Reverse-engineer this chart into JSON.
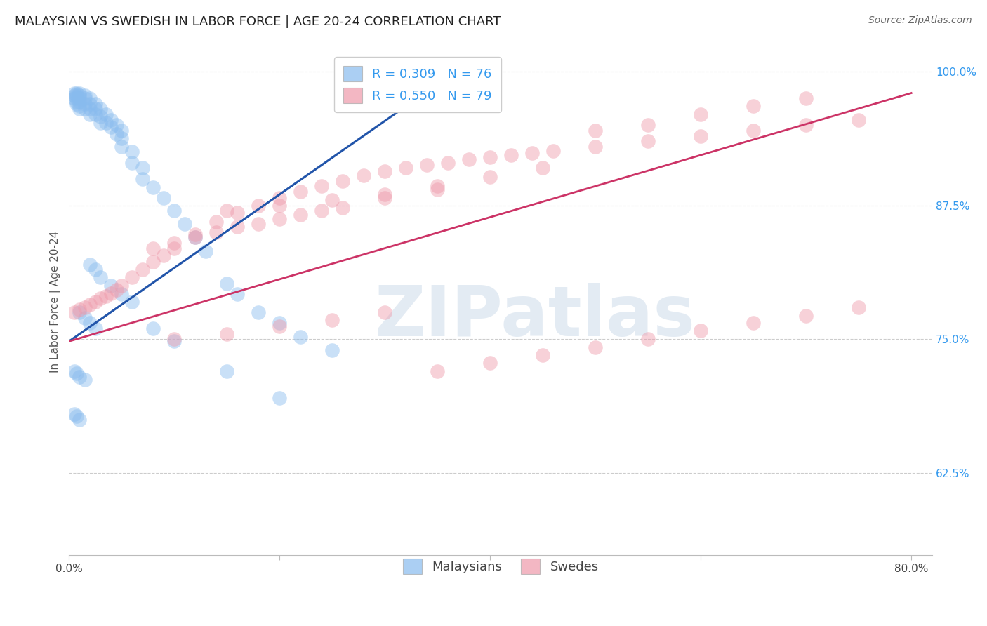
{
  "title": "MALAYSIAN VS SWEDISH IN LABOR FORCE | AGE 20-24 CORRELATION CHART",
  "source": "Source: ZipAtlas.com",
  "ylabel": "In Labor Force | Age 20-24",
  "xlim": [
    0.0,
    0.82
  ],
  "ylim": [
    0.548,
    1.022
  ],
  "ytick_positions": [
    0.625,
    0.75,
    0.875,
    1.0
  ],
  "ytick_labels": [
    "62.5%",
    "75.0%",
    "87.5%",
    "100.0%"
  ],
  "xtick_positions": [
    0.0,
    0.2,
    0.4,
    0.6,
    0.8
  ],
  "xtick_labels": [
    "0.0%",
    "",
    "",
    "",
    "80.0%"
  ],
  "watermark_text": "ZIPatlas",
  "blue_R": 0.309,
  "blue_N": 76,
  "pink_R": 0.55,
  "pink_N": 79,
  "blue_fill": "#88BBEE",
  "pink_fill": "#EE99AA",
  "blue_line": "#2255AA",
  "pink_line": "#CC3366",
  "grid_color": "#CCCCCC",
  "bg_color": "#FFFFFF",
  "blue_x": [
    0.005,
    0.005,
    0.005,
    0.007,
    0.007,
    0.007,
    0.007,
    0.007,
    0.01,
    0.01,
    0.01,
    0.01,
    0.01,
    0.01,
    0.015,
    0.015,
    0.015,
    0.015,
    0.02,
    0.02,
    0.02,
    0.02,
    0.025,
    0.025,
    0.025,
    0.03,
    0.03,
    0.03,
    0.035,
    0.035,
    0.04,
    0.04,
    0.045,
    0.045,
    0.05,
    0.05,
    0.05,
    0.06,
    0.06,
    0.07,
    0.07,
    0.08,
    0.09,
    0.1,
    0.11,
    0.12,
    0.13,
    0.15,
    0.16,
    0.18,
    0.2,
    0.22,
    0.25,
    0.01,
    0.015,
    0.02,
    0.025,
    0.005,
    0.007,
    0.01,
    0.015,
    0.005,
    0.007,
    0.01,
    0.02,
    0.025,
    0.03,
    0.04,
    0.05,
    0.06,
    0.08,
    0.1,
    0.15,
    0.2
  ],
  "blue_y": [
    0.98,
    0.978,
    0.975,
    0.98,
    0.978,
    0.975,
    0.972,
    0.97,
    0.98,
    0.978,
    0.975,
    0.972,
    0.968,
    0.965,
    0.978,
    0.975,
    0.97,
    0.965,
    0.975,
    0.97,
    0.965,
    0.96,
    0.97,
    0.965,
    0.96,
    0.965,
    0.958,
    0.952,
    0.96,
    0.952,
    0.955,
    0.948,
    0.95,
    0.942,
    0.945,
    0.938,
    0.93,
    0.925,
    0.915,
    0.91,
    0.9,
    0.892,
    0.882,
    0.87,
    0.858,
    0.845,
    0.832,
    0.802,
    0.792,
    0.775,
    0.765,
    0.752,
    0.74,
    0.775,
    0.77,
    0.765,
    0.76,
    0.72,
    0.718,
    0.715,
    0.712,
    0.68,
    0.678,
    0.675,
    0.82,
    0.815,
    0.808,
    0.8,
    0.792,
    0.785,
    0.76,
    0.748,
    0.72,
    0.695
  ],
  "pink_x": [
    0.005,
    0.01,
    0.015,
    0.02,
    0.025,
    0.03,
    0.035,
    0.04,
    0.045,
    0.05,
    0.06,
    0.07,
    0.08,
    0.09,
    0.1,
    0.12,
    0.14,
    0.16,
    0.18,
    0.2,
    0.22,
    0.24,
    0.26,
    0.28,
    0.3,
    0.32,
    0.34,
    0.36,
    0.38,
    0.4,
    0.42,
    0.44,
    0.46,
    0.5,
    0.55,
    0.6,
    0.65,
    0.7,
    0.75,
    0.08,
    0.1,
    0.12,
    0.14,
    0.16,
    0.18,
    0.2,
    0.22,
    0.24,
    0.26,
    0.3,
    0.35,
    0.4,
    0.45,
    0.15,
    0.2,
    0.25,
    0.3,
    0.35,
    0.5,
    0.55,
    0.6,
    0.65,
    0.7,
    0.1,
    0.15,
    0.2,
    0.25,
    0.3,
    0.35,
    0.4,
    0.45,
    0.5,
    0.55,
    0.6,
    0.65,
    0.7,
    0.75
  ],
  "pink_y": [
    0.775,
    0.778,
    0.78,
    0.782,
    0.785,
    0.788,
    0.79,
    0.793,
    0.796,
    0.8,
    0.808,
    0.815,
    0.822,
    0.828,
    0.835,
    0.848,
    0.86,
    0.868,
    0.875,
    0.882,
    0.888,
    0.893,
    0.898,
    0.903,
    0.907,
    0.91,
    0.913,
    0.915,
    0.918,
    0.92,
    0.922,
    0.924,
    0.926,
    0.93,
    0.935,
    0.94,
    0.945,
    0.95,
    0.955,
    0.835,
    0.84,
    0.845,
    0.85,
    0.855,
    0.858,
    0.862,
    0.866,
    0.87,
    0.873,
    0.882,
    0.893,
    0.902,
    0.91,
    0.87,
    0.875,
    0.88,
    0.885,
    0.89,
    0.945,
    0.95,
    0.96,
    0.968,
    0.975,
    0.75,
    0.755,
    0.762,
    0.768,
    0.775,
    0.72,
    0.728,
    0.735,
    0.742,
    0.75,
    0.758,
    0.765,
    0.772,
    0.78
  ],
  "blue_line_x0": 0.0,
  "blue_line_x1": 0.37,
  "blue_line_y0": 0.748,
  "blue_line_y1": 1.002,
  "pink_line_x0": 0.0,
  "pink_line_x1": 0.8,
  "pink_line_y0": 0.748,
  "pink_line_y1": 0.98
}
